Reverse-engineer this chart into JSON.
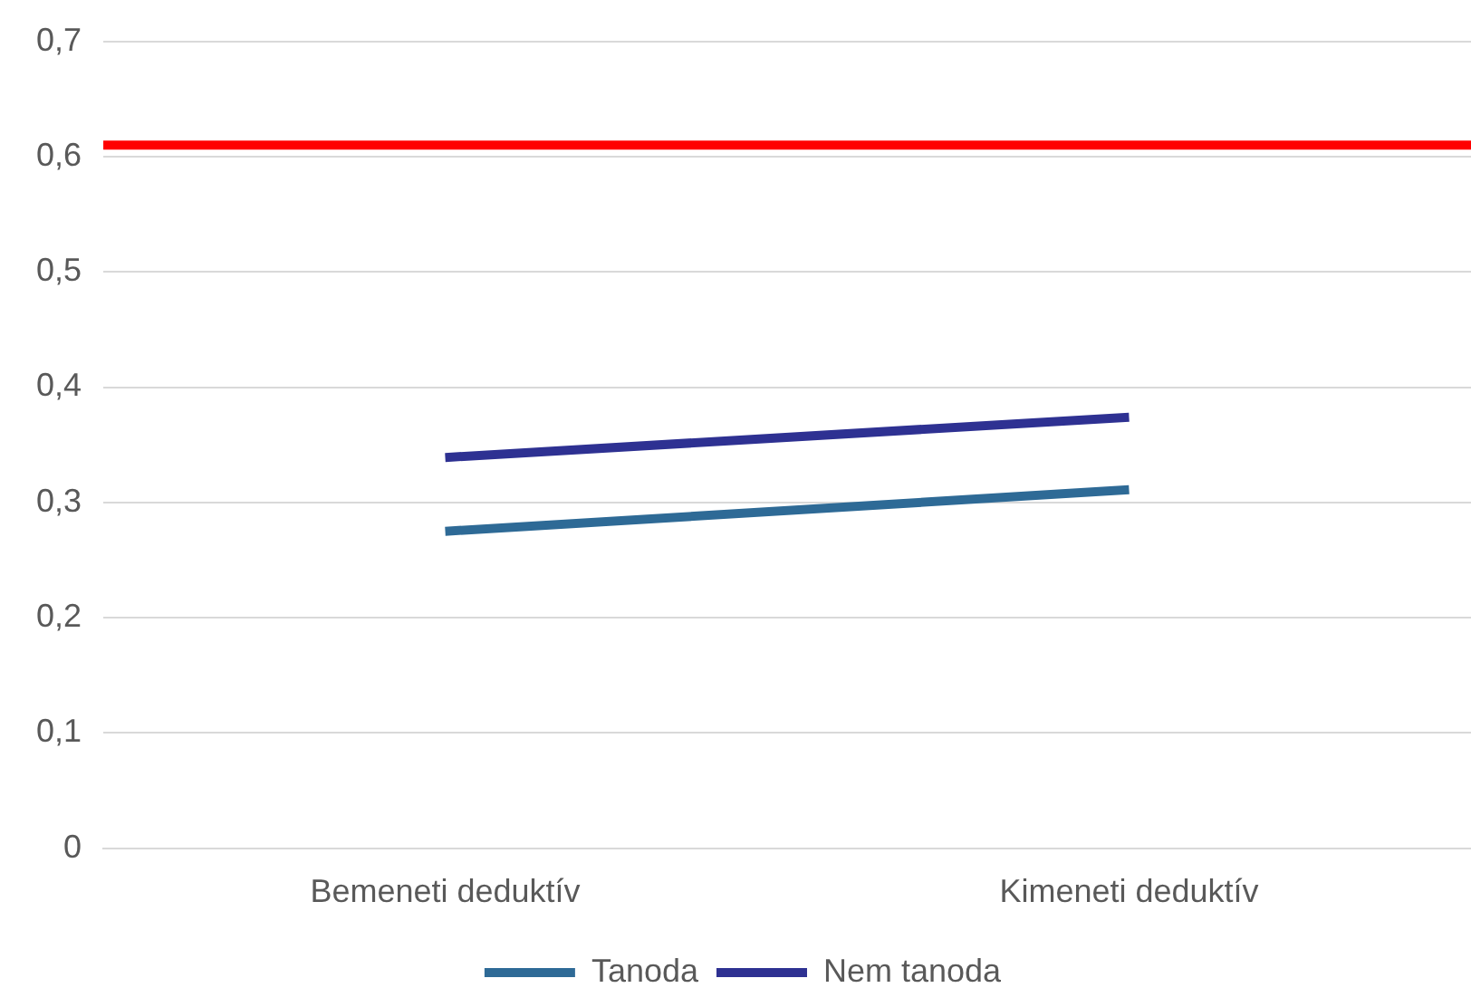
{
  "chart_data": {
    "type": "line",
    "categories": [
      "Bemeneti deduktív",
      "Kimeneti deduktív"
    ],
    "series": [
      {
        "name": "Tanoda",
        "color": "#2e6a96",
        "values": [
          0.275,
          0.311
        ]
      },
      {
        "name": "Nem tanoda",
        "color": "#2e3192",
        "values": [
          0.339,
          0.374
        ]
      }
    ],
    "ylim": [
      0,
      0.7
    ],
    "yticks": [
      {
        "value": 0,
        "label": "0"
      },
      {
        "value": 0.1,
        "label": "0,1"
      },
      {
        "value": 0.2,
        "label": "0,2"
      },
      {
        "value": 0.3,
        "label": "0,3"
      },
      {
        "value": 0.4,
        "label": "0,4"
      },
      {
        "value": 0.5,
        "label": "0,5"
      },
      {
        "value": 0.6,
        "label": "0,6"
      },
      {
        "value": 0.7,
        "label": "0,7"
      }
    ],
    "ref_lines": [
      {
        "axis": "y",
        "value": 0.61,
        "color": "#ff0000"
      }
    ],
    "grid": "y",
    "legend": "bottom",
    "marker": "none",
    "line_style": "solid"
  }
}
